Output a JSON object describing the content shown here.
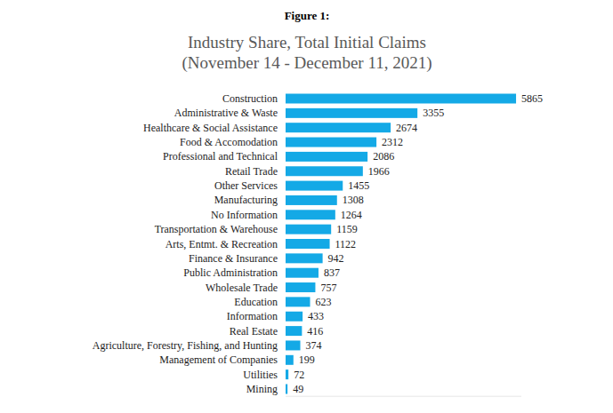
{
  "figure_label": "Figure 1:",
  "chart_data": {
    "type": "bar",
    "orientation": "horizontal",
    "title": "Industry Share, Total Initial Claims",
    "subtitle": "(November 14 - December 11, 2021)",
    "categories": [
      "Construction",
      "Administrative & Waste",
      "Healthcare & Social Assistance",
      "Food & Accomodation",
      "Professional and Technical",
      "Retail Trade",
      "Other Services",
      "Manufacturing",
      "No Information",
      "Transportation & Warehouse",
      "Arts, Entmt. & Recreation",
      "Finance & Insurance",
      "Public Administration",
      "Wholesale Trade",
      "Education",
      "Information",
      "Real Estate",
      "Agriculture, Forestry, Fishing, and Hunting",
      "Management of Companies",
      "Utilities",
      "Mining"
    ],
    "values": [
      5865,
      3355,
      2674,
      2312,
      2086,
      1966,
      1455,
      1308,
      1264,
      1159,
      1122,
      942,
      837,
      757,
      623,
      433,
      416,
      374,
      199,
      72,
      49
    ],
    "color": "#14a9e6",
    "xlim": [
      0,
      6000
    ],
    "grid": false,
    "data_labels": true,
    "tick_labels": "y"
  }
}
